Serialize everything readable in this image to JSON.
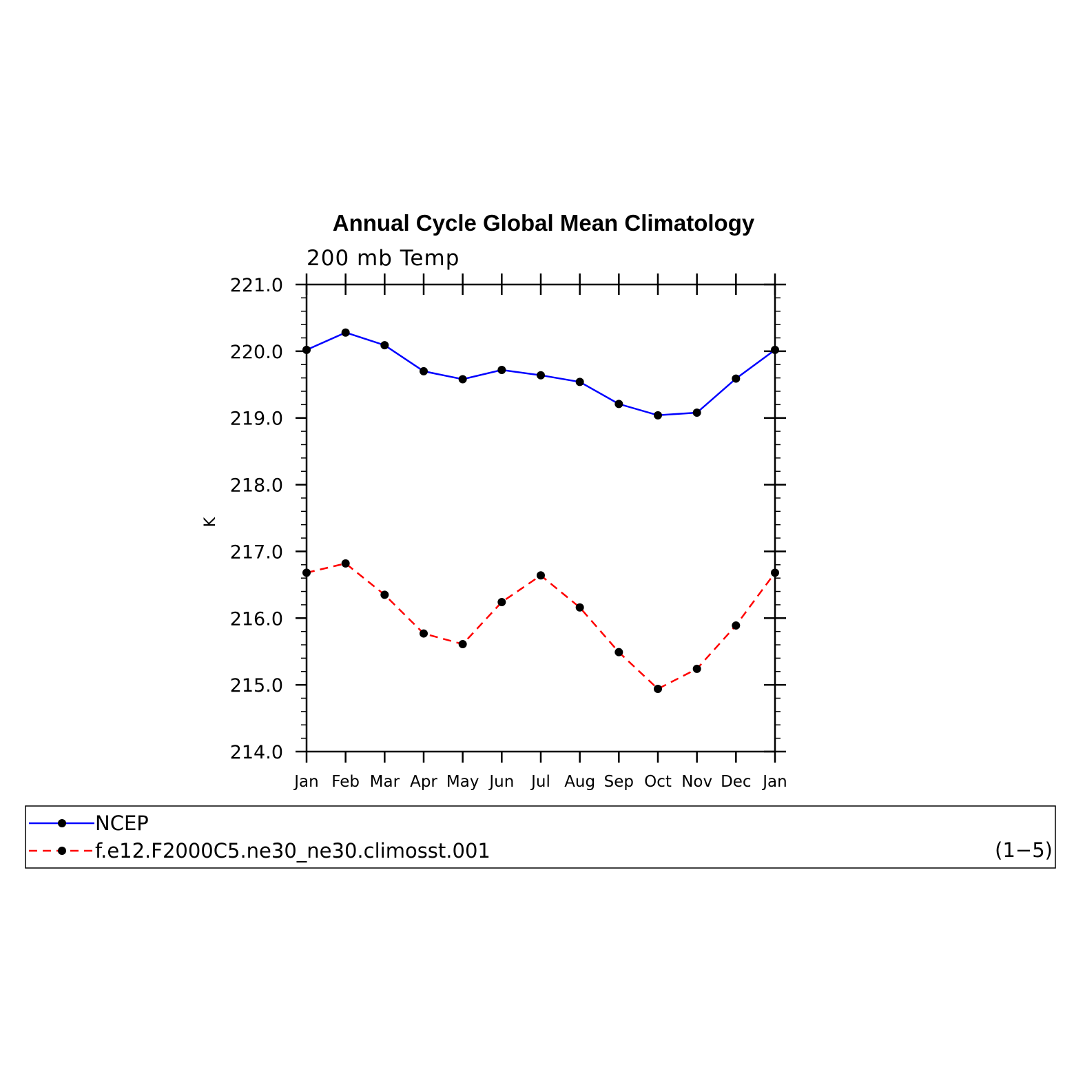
{
  "chart_data": {
    "type": "line",
    "title": "Annual Cycle Global Mean Climatology",
    "subtitle": "200 mb Temp",
    "xlabel": "",
    "ylabel": "K",
    "categories": [
      "Jan",
      "Feb",
      "Mar",
      "Apr",
      "May",
      "Jun",
      "Jul",
      "Aug",
      "Sep",
      "Oct",
      "Nov",
      "Dec",
      "Jan"
    ],
    "yticks": [
      "214.0",
      "215.0",
      "216.0",
      "217.0",
      "218.0",
      "219.0",
      "220.0",
      "221.0"
    ],
    "ylim": [
      214.0,
      221.0
    ],
    "grid": false,
    "legend_position": "bottom",
    "series": [
      {
        "name": "NCEP",
        "color": "#0000ff",
        "line_style": "solid",
        "marker": "filled-circle",
        "values": [
          220.02,
          220.28,
          220.09,
          219.7,
          219.58,
          219.72,
          219.64,
          219.54,
          219.21,
          219.04,
          219.08,
          219.59,
          220.02
        ]
      },
      {
        "name": "f.e12.F2000C5.ne30_ne30.climosst.001",
        "color": "#ff0000",
        "line_style": "dashed",
        "marker": "filled-circle",
        "values": [
          216.68,
          216.82,
          216.35,
          215.77,
          215.61,
          216.24,
          216.64,
          216.16,
          215.49,
          214.94,
          215.24,
          215.89,
          216.68
        ]
      }
    ],
    "legend_annotation": "(1−5)"
  }
}
